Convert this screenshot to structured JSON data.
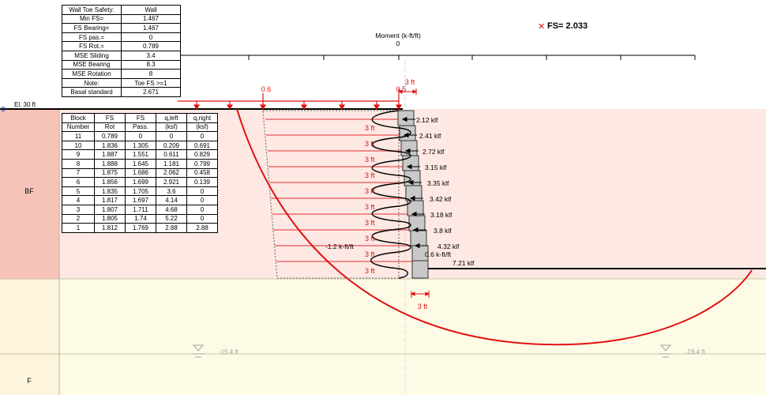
{
  "summary_table": {
    "header": [
      "Wall Toe Safety:",
      "Wall"
    ],
    "rows": [
      [
        "Min FS=",
        "1.467"
      ],
      [
        "FS Bearing=",
        "1.467"
      ],
      [
        "FS pas.=",
        "0"
      ],
      [
        "FS Rot.=",
        "0.789"
      ],
      [
        "MSE Sliding",
        "3.4"
      ],
      [
        "MSE Bearing",
        "8.3"
      ],
      [
        "MSE Rotation",
        "8"
      ],
      [
        "Note:",
        "Toe FS >=1"
      ],
      [
        "Basal standard",
        "2.671"
      ]
    ]
  },
  "block_table": {
    "header": [
      [
        "Block",
        "FS",
        "FS",
        "q,left",
        "q,right"
      ],
      [
        "Number",
        "Rot",
        "Pass.",
        "(ksf)",
        "(ksf)"
      ]
    ],
    "rows": [
      [
        "11",
        "0.789",
        "0",
        "0",
        "0"
      ],
      [
        "10",
        "1.836",
        "1.305",
        "0.209",
        "0.691"
      ],
      [
        "9",
        "1.887",
        "1.551",
        "0.611",
        "0.829"
      ],
      [
        "8",
        "1.888",
        "1.645",
        "1.181",
        "0.799"
      ],
      [
        "7",
        "1.875",
        "1.686",
        "2.062",
        "0.458"
      ],
      [
        "6",
        "1.856",
        "1.699",
        "2.921",
        "0.139"
      ],
      [
        "5",
        "1.835",
        "1.705",
        "3.6",
        "0"
      ],
      [
        "4",
        "1.817",
        "1.697",
        "4.14",
        "0"
      ],
      [
        "3",
        "1.807",
        "1.711",
        "4.68",
        "0"
      ],
      [
        "2",
        "1.805",
        "1.74",
        "5.22",
        "0"
      ],
      [
        "1",
        "1.812",
        "1.769",
        "2.88",
        "2.88"
      ]
    ]
  },
  "fs_label": "FS= 2.033",
  "moment_axis": {
    "title": "Moment (k-ft/ft)",
    "zero_label": "0"
  },
  "elevation_label": "El. 30 ft",
  "layers": {
    "upper": "BF",
    "lower": "F"
  },
  "surcharge": {
    "left_value": "0.6",
    "right_value": "0.5"
  },
  "dimensions": {
    "top": "3 ft",
    "bottom": "3 ft",
    "block_spacing": "3 ft"
  },
  "forces": [
    "2.12 klf",
    "2.41 klf",
    "2.72 klf",
    "3.15 klf",
    "3.35 klf",
    "3.42 klf",
    "3.18 klf",
    "3.8 klf",
    "4.32 klf",
    "7.21 klf"
  ],
  "moment_labels": {
    "left": "-1.2 k-ft/ft",
    "right": "0.6 k-ft/ft"
  },
  "water_table": {
    "left": "-15.4 ft",
    "right": "-19.4 ft"
  },
  "colors": {
    "failure_surface": "#e01010",
    "bf_layer": "#fde8e3",
    "f_layer": "#fdfbe6",
    "strip": "#f08a8a",
    "block": "#c8c8c8",
    "layer_column_bf": "#f7c3b8"
  }
}
